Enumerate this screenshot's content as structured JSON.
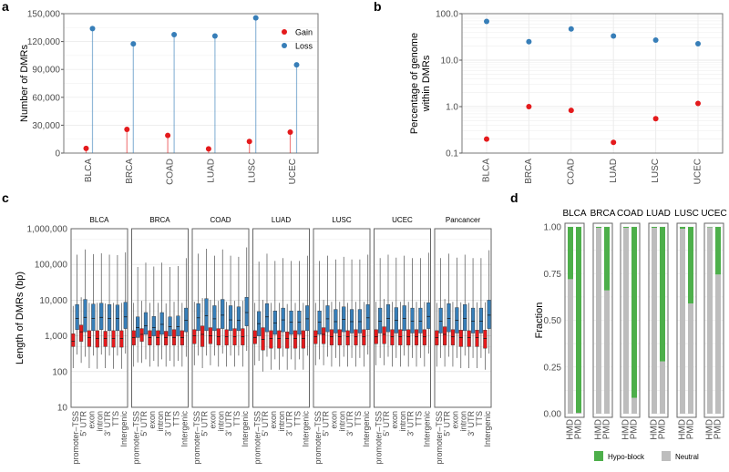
{
  "colors": {
    "gain": "#e41a1c",
    "loss": "#377eb8",
    "hypo_block": "#4daf4a",
    "neutral": "#bdbdbd"
  },
  "chart_data": [
    {
      "panel": "a",
      "type": "lollipop",
      "categories": [
        "BLCA",
        "BRCA",
        "COAD",
        "LUAD",
        "LUSC",
        "UCEC"
      ],
      "series": [
        {
          "name": "Gain",
          "values": [
            5000,
            25500,
            19000,
            4500,
            12500,
            22500
          ]
        },
        {
          "name": "Loss",
          "values": [
            134000,
            117500,
            127500,
            126000,
            145500,
            95000
          ]
        }
      ],
      "xlabel": "",
      "ylabel": "Number of DMRs",
      "ylim": [
        0,
        150000
      ],
      "yticks": [
        "0",
        "30,000",
        "60,000",
        "90,000",
        "120,000",
        "150,000"
      ],
      "legend": "top-right",
      "grid": true
    },
    {
      "panel": "b",
      "type": "scatter",
      "categories": [
        "BLCA",
        "BRCA",
        "COAD",
        "LUAD",
        "LUSC",
        "UCEC"
      ],
      "series": [
        {
          "name": "Gain",
          "values": [
            0.2,
            1.0,
            0.83,
            0.17,
            0.55,
            1.17
          ]
        },
        {
          "name": "Loss",
          "values": [
            68,
            25,
            47,
            33,
            27,
            22.5
          ]
        }
      ],
      "ylabel": "Percentage of genome within DMRs",
      "yscale": "log",
      "ylim": [
        0.1,
        100
      ],
      "yticks": [
        "0.1",
        "1.0",
        "10.0",
        "100.0"
      ],
      "grid": true
    },
    {
      "panel": "c",
      "type": "boxplot",
      "ylabel": "Length of DMRs (bp)",
      "yscale": "log",
      "ylim": [
        10,
        1000000
      ],
      "yticks": [
        "10",
        "100",
        "1,000",
        "10,000",
        "100,000",
        "1,000,000"
      ],
      "categories": [
        "promoter–TSS",
        "5' UTR",
        "exon",
        "intron",
        "3' UTR",
        "TTS",
        "Intergenic"
      ],
      "facets": [
        {
          "name": "BLCA",
          "gain": [
            [
              500,
              700,
              1150
            ],
            [
              700,
              1300,
              2000
            ],
            [
              500,
              900,
              1400
            ],
            [
              480,
              850,
              1400
            ],
            [
              500,
              850,
              1350
            ],
            [
              480,
              850,
              1400
            ],
            [
              480,
              850,
              1400
            ]
          ],
          "loss": [
            [
              1500,
              3100,
              7500
            ],
            [
              1300,
              3300,
              10500
            ],
            [
              1400,
              3100,
              7800
            ],
            [
              1500,
              3300,
              8200
            ],
            [
              1400,
              3100,
              7500
            ],
            [
              1400,
              3100,
              7300
            ],
            [
              1600,
              3400,
              8700
            ]
          ]
        },
        {
          "name": "BRCA",
          "gain": [
            [
              550,
              900,
              1400
            ],
            [
              700,
              1100,
              1600
            ],
            [
              550,
              900,
              1400
            ],
            [
              550,
              900,
              1400
            ],
            [
              550,
              900,
              1350
            ],
            [
              550,
              900,
              1500
            ],
            [
              550,
              900,
              1400
            ]
          ],
          "loss": [
            [
              900,
              1700,
              3400
            ],
            [
              1100,
              1900,
              4500
            ],
            [
              1000,
              1700,
              3500
            ],
            [
              1100,
              2100,
              4500
            ],
            [
              1000,
              1800,
              3400
            ],
            [
              1000,
              1800,
              3600
            ],
            [
              1300,
              2700,
              6000
            ]
          ]
        },
        {
          "name": "COAD",
          "gain": [
            [
              600,
              1000,
              1500
            ],
            [
              500,
              1100,
              1900
            ],
            [
              600,
              1000,
              1700
            ],
            [
              550,
              950,
              1600
            ],
            [
              550,
              950,
              1500
            ],
            [
              550,
              950,
              1600
            ],
            [
              550,
              950,
              1600
            ]
          ],
          "loss": [
            [
              1400,
              3200,
              8000
            ],
            [
              1400,
              3700,
              11000
            ],
            [
              1400,
              3000,
              7000
            ],
            [
              1600,
              3800,
              10500
            ],
            [
              1400,
              2800,
              7000
            ],
            [
              1400,
              2700,
              6500
            ],
            [
              1900,
              4500,
              12000
            ]
          ]
        },
        {
          "name": "LUAD",
          "gain": [
            [
              600,
              900,
              1400
            ],
            [
              400,
              800,
              1700
            ],
            [
              450,
              850,
              1400
            ],
            [
              450,
              850,
              1400
            ],
            [
              450,
              850,
              1300
            ],
            [
              450,
              850,
              1400
            ],
            [
              450,
              850,
              1400
            ]
          ],
          "loss": [
            [
              1000,
              2200,
              4800
            ],
            [
              1300,
              3400,
              8000
            ],
            [
              1100,
              2300,
              5000
            ],
            [
              1300,
              2800,
              6000
            ],
            [
              1100,
              2400,
              5000
            ],
            [
              1100,
              2400,
              5000
            ],
            [
              1400,
              3000,
              7000
            ]
          ]
        },
        {
          "name": "LUSC",
          "gain": [
            [
              600,
              950,
              1400
            ],
            [
              600,
              1100,
              1700
            ],
            [
              550,
              950,
              1500
            ],
            [
              550,
              950,
              1500
            ],
            [
              550,
              950,
              1400
            ],
            [
              550,
              950,
              1500
            ],
            [
              550,
              950,
              1500
            ]
          ],
          "loss": [
            [
              1100,
              2400,
              5000
            ],
            [
              1300,
              3000,
              7000
            ],
            [
              1200,
              2500,
              5500
            ],
            [
              1300,
              2900,
              6500
            ],
            [
              1200,
              2500,
              5500
            ],
            [
              1200,
              2500,
              5500
            ],
            [
              1500,
              3200,
              7500
            ]
          ]
        },
        {
          "name": "UCEC",
          "gain": [
            [
              600,
              950,
              1500
            ],
            [
              600,
              1100,
              1800
            ],
            [
              550,
              950,
              1500
            ],
            [
              550,
              950,
              1500
            ],
            [
              550,
              950,
              1500
            ],
            [
              550,
              950,
              1500
            ],
            [
              550,
              950,
              1500
            ]
          ],
          "loss": [
            [
              1200,
              2600,
              6000
            ],
            [
              1300,
              3100,
              7500
            ],
            [
              1200,
              2700,
              6200
            ],
            [
              1400,
              3100,
              7000
            ],
            [
              1200,
              2600,
              6000
            ],
            [
              1200,
              2600,
              6000
            ],
            [
              1600,
              3500,
              8500
            ]
          ]
        },
        {
          "name": "Pancancer",
          "gain": [
            [
              550,
              900,
              1400
            ],
            [
              550,
              1100,
              1800
            ],
            [
              550,
              950,
              1500
            ],
            [
              500,
              900,
              1450
            ],
            [
              500,
              900,
              1400
            ],
            [
              500,
              900,
              1450
            ],
            [
              450,
              850,
              1450
            ]
          ],
          "loss": [
            [
              1200,
              2600,
              6000
            ],
            [
              1300,
              3100,
              8000
            ],
            [
              1200,
              2700,
              6200
            ],
            [
              1400,
              3100,
              7500
            ],
            [
              1200,
              2600,
              6000
            ],
            [
              1200,
              2600,
              6000
            ],
            [
              1600,
              3800,
              10000
            ]
          ]
        }
      ]
    },
    {
      "panel": "d",
      "type": "stacked_bar",
      "facets": [
        "BLCA",
        "BRCA",
        "COAD",
        "LUAD",
        "LUSC",
        "UCEC"
      ],
      "categories": [
        "HMD",
        "PMD"
      ],
      "series": [
        {
          "name": "Neutral",
          "values": [
            [
              0.72,
              0.005
            ],
            [
              0.995,
              0.66
            ],
            [
              0.995,
              0.085
            ],
            [
              0.995,
              0.28
            ],
            [
              0.99,
              0.59
            ],
            [
              0.998,
              0.745
            ]
          ]
        },
        {
          "name": "Hypo-block",
          "values": [
            [
              0.28,
              0.995
            ],
            [
              0.005,
              0.34
            ],
            [
              0.005,
              0.915
            ],
            [
              0.005,
              0.72
            ],
            [
              0.01,
              0.41
            ],
            [
              0.002,
              0.255
            ]
          ]
        }
      ],
      "ylabel": "Fraction",
      "ylim": [
        0,
        1
      ],
      "yticks": [
        "0.00",
        "0.25",
        "0.50",
        "0.75",
        "1.00"
      ],
      "legend": "bottom"
    }
  ],
  "panel_labels": [
    "a",
    "b",
    "c",
    "d"
  ]
}
